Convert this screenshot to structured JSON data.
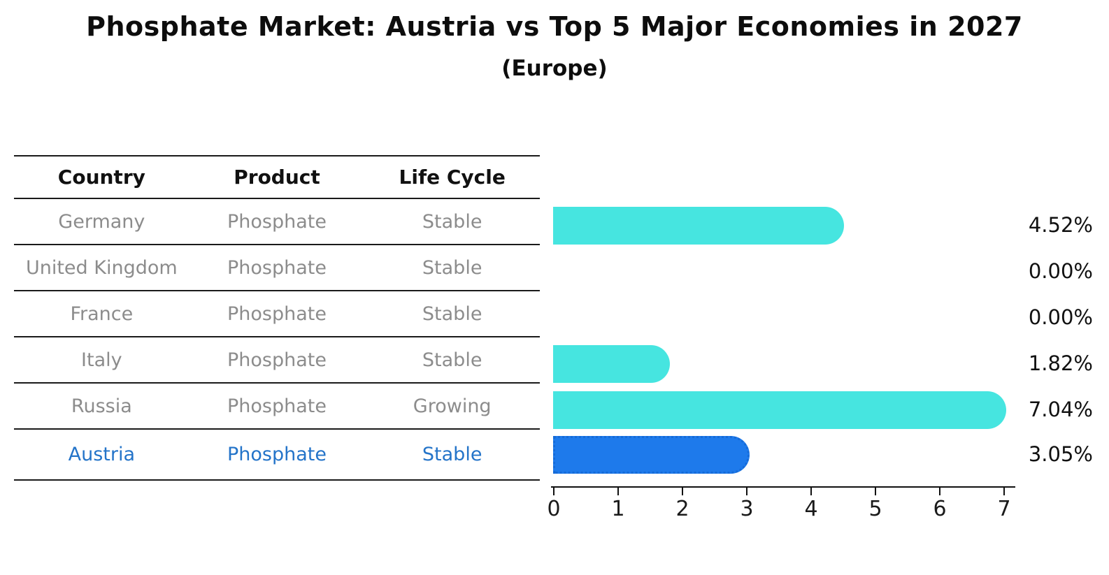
{
  "title": "Phosphate Market: Austria vs Top 5 Major Economies in 2027",
  "subtitle": "(Europe)",
  "table": {
    "headers": [
      "Country",
      "Product",
      "Life Cycle"
    ],
    "rows": [
      {
        "country": "Germany",
        "product": "Phosphate",
        "life_cycle": "Stable",
        "highlight": false
      },
      {
        "country": "United Kingdom",
        "product": "Phosphate",
        "life_cycle": "Stable",
        "highlight": false
      },
      {
        "country": "France",
        "product": "Phosphate",
        "life_cycle": "Stable",
        "highlight": false
      },
      {
        "country": "Italy",
        "product": "Phosphate",
        "life_cycle": "Stable",
        "highlight": false
      },
      {
        "country": "Russia",
        "product": "Phosphate",
        "life_cycle": "Growing",
        "highlight": false
      },
      {
        "country": "Austria",
        "product": "Phosphate",
        "life_cycle": "Stable",
        "highlight": true
      }
    ]
  },
  "chart_data": {
    "type": "bar",
    "orientation": "horizontal",
    "title": "Phosphate Market: Austria vs Top 5 Major Economies in 2027",
    "subtitle": "(Europe)",
    "categories": [
      "Germany",
      "United Kingdom",
      "France",
      "Italy",
      "Russia",
      "Austria"
    ],
    "values": [
      4.52,
      0.0,
      0.0,
      1.82,
      7.04,
      3.05
    ],
    "value_labels": [
      "4.52%",
      "0.00%",
      "0.00%",
      "1.82%",
      "7.04%",
      "3.05%"
    ],
    "xticks": [
      "0",
      "1",
      "2",
      "3",
      "4",
      "5",
      "6",
      "7"
    ],
    "xlim": [
      0,
      7.3
    ],
    "grid": false,
    "legend": "none",
    "highlight_index": 5,
    "bar_color": "#46E5E0",
    "highlight_fill": "#1E7AEB",
    "highlight_edge": "#156BD8",
    "label_color": "#111111",
    "table_text_color": "#8c8c8c",
    "highlight_text_color": "#2474C9"
  }
}
